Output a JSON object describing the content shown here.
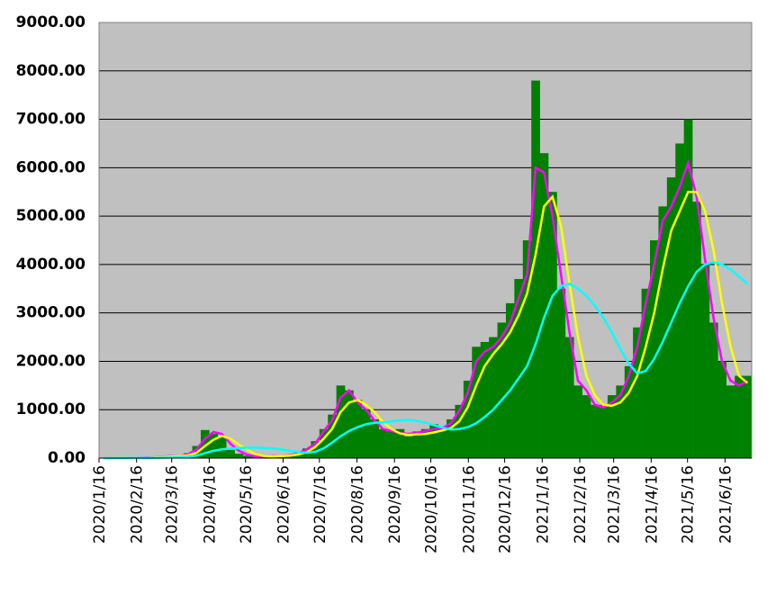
{
  "chart_data": {
    "type": "bar-line",
    "x": [
      "2020/1/16",
      "2020/1/23",
      "2020/1/30",
      "2020/2/6",
      "2020/2/13",
      "2020/2/20",
      "2020/2/27",
      "2020/3/5",
      "2020/3/12",
      "2020/3/19",
      "2020/3/26",
      "2020/4/2",
      "2020/4/9",
      "2020/4/16",
      "2020/4/23",
      "2020/4/30",
      "2020/5/7",
      "2020/5/14",
      "2020/5/21",
      "2020/5/28",
      "2020/6/4",
      "2020/6/11",
      "2020/6/18",
      "2020/6/25",
      "2020/7/2",
      "2020/7/9",
      "2020/7/16",
      "2020/7/23",
      "2020/7/30",
      "2020/8/6",
      "2020/8/13",
      "2020/8/20",
      "2020/8/27",
      "2020/9/3",
      "2020/9/10",
      "2020/9/17",
      "2020/9/24",
      "2020/10/1",
      "2020/10/8",
      "2020/10/15",
      "2020/10/22",
      "2020/10/29",
      "2020/11/5",
      "2020/11/12",
      "2020/11/19",
      "2020/11/26",
      "2020/12/3",
      "2020/12/10",
      "2020/12/17",
      "2020/12/24",
      "2020/12/31",
      "2021/1/7",
      "2021/1/14",
      "2021/1/21",
      "2021/1/28",
      "2021/2/4",
      "2021/2/11",
      "2021/2/18",
      "2021/2/25",
      "2021/3/4",
      "2021/3/11",
      "2021/3/18",
      "2021/3/25",
      "2021/4/1",
      "2021/4/8",
      "2021/4/15",
      "2021/4/22",
      "2021/4/29",
      "2021/5/6",
      "2021/5/13",
      "2021/5/20",
      "2021/5/27",
      "2021/6/3",
      "2021/6/10",
      "2021/6/17",
      "2021/6/24",
      "2021/7/1"
    ],
    "series": [
      {
        "kind": "bar",
        "color": "#008000",
        "values": [
          0,
          0,
          2,
          3,
          5,
          15,
          20,
          30,
          50,
          40,
          100,
          250,
          580,
          500,
          430,
          170,
          90,
          50,
          30,
          40,
          40,
          40,
          60,
          100,
          200,
          350,
          600,
          900,
          1500,
          1400,
          1200,
          1000,
          800,
          600,
          550,
          600,
          450,
          550,
          600,
          700,
          650,
          800,
          1100,
          1600,
          2300,
          2400,
          2500,
          2800,
          3200,
          3700,
          4500,
          7800,
          6300,
          5500,
          3500,
          2500,
          1500,
          1300,
          1100,
          1100,
          1300,
          1500,
          1900,
          2700,
          3500,
          4500,
          5200,
          5800,
          6500,
          7000,
          5300,
          4000,
          2800,
          2000,
          1500,
          1700,
          1700
        ]
      },
      {
        "kind": "line",
        "color": "#ff00ff",
        "values": [
          0,
          0,
          1,
          2,
          4,
          10,
          15,
          30,
          45,
          40,
          80,
          180,
          400,
          540,
          500,
          300,
          150,
          70,
          30,
          35,
          40,
          45,
          60,
          100,
          180,
          300,
          550,
          780,
          1250,
          1400,
          1150,
          1000,
          780,
          600,
          560,
          520,
          500,
          520,
          560,
          600,
          620,
          720,
          980,
          1350,
          2000,
          2200,
          2300,
          2500,
          2800,
          3300,
          3800,
          6000,
          5900,
          5000,
          3800,
          2600,
          1600,
          1400,
          1100,
          1050,
          1150,
          1300,
          1700,
          2300,
          3200,
          4000,
          4900,
          5200,
          5600,
          6100,
          5400,
          4100,
          2900,
          2000,
          1600,
          1500,
          1600
        ]
      },
      {
        "kind": "line",
        "color": "#ffff00",
        "values": [
          0,
          0,
          1,
          1,
          2,
          6,
          12,
          22,
          35,
          40,
          55,
          110,
          250,
          380,
          460,
          400,
          280,
          170,
          80,
          40,
          35,
          40,
          50,
          75,
          120,
          230,
          400,
          600,
          950,
          1150,
          1200,
          1100,
          950,
          750,
          600,
          510,
          480,
          490,
          500,
          530,
          570,
          620,
          760,
          1050,
          1500,
          1900,
          2150,
          2350,
          2600,
          2950,
          3400,
          4200,
          5200,
          5400,
          4800,
          3600,
          2500,
          1700,
          1300,
          1100,
          1080,
          1150,
          1350,
          1700,
          2300,
          3000,
          3900,
          4700,
          5100,
          5500,
          5500,
          5100,
          4300,
          3200,
          2300,
          1700,
          1550
        ]
      },
      {
        "kind": "line",
        "color": "#00ffff",
        "values": [
          0,
          0,
          0,
          1,
          1,
          3,
          5,
          10,
          15,
          20,
          30,
          50,
          100,
          150,
          180,
          200,
          210,
          215,
          215,
          210,
          200,
          180,
          150,
          120,
          110,
          130,
          200,
          320,
          450,
          560,
          640,
          700,
          730,
          740,
          760,
          780,
          790,
          770,
          730,
          680,
          630,
          590,
          600,
          640,
          720,
          850,
          1000,
          1200,
          1400,
          1650,
          1900,
          2350,
          2900,
          3350,
          3550,
          3600,
          3500,
          3350,
          3150,
          2900,
          2600,
          2250,
          1950,
          1750,
          1800,
          2050,
          2400,
          2800,
          3200,
          3550,
          3850,
          4000,
          4050,
          4000,
          3900,
          3750,
          3600
        ]
      }
    ],
    "xticks": [
      "2020/1/16",
      "2020/2/16",
      "2020/3/16",
      "2020/4/16",
      "2020/5/16",
      "2020/6/16",
      "2020/7/16",
      "2020/8/16",
      "2020/9/16",
      "2020/10/16",
      "2020/11/16",
      "2020/12/16",
      "2021/1/16",
      "2021/2/16",
      "2021/3/16",
      "2021/4/16",
      "2021/5/16",
      "2021/6/16"
    ],
    "ylim": [
      0,
      9000
    ],
    "yticks": [
      {
        "value": 0,
        "label": "0.00"
      },
      {
        "value": 1000,
        "label": "1000.00"
      },
      {
        "value": 2000,
        "label": "2000.00"
      },
      {
        "value": 3000,
        "label": "3000.00"
      },
      {
        "value": 4000,
        "label": "4000.00"
      },
      {
        "value": 5000,
        "label": "5000.00"
      },
      {
        "value": 6000,
        "label": "6000.00"
      },
      {
        "value": 7000,
        "label": "7000.00"
      },
      {
        "value": 8000,
        "label": "8000.00"
      },
      {
        "value": 9000,
        "label": "9000.00"
      }
    ],
    "grid": true,
    "background": "#c0c0c0"
  }
}
